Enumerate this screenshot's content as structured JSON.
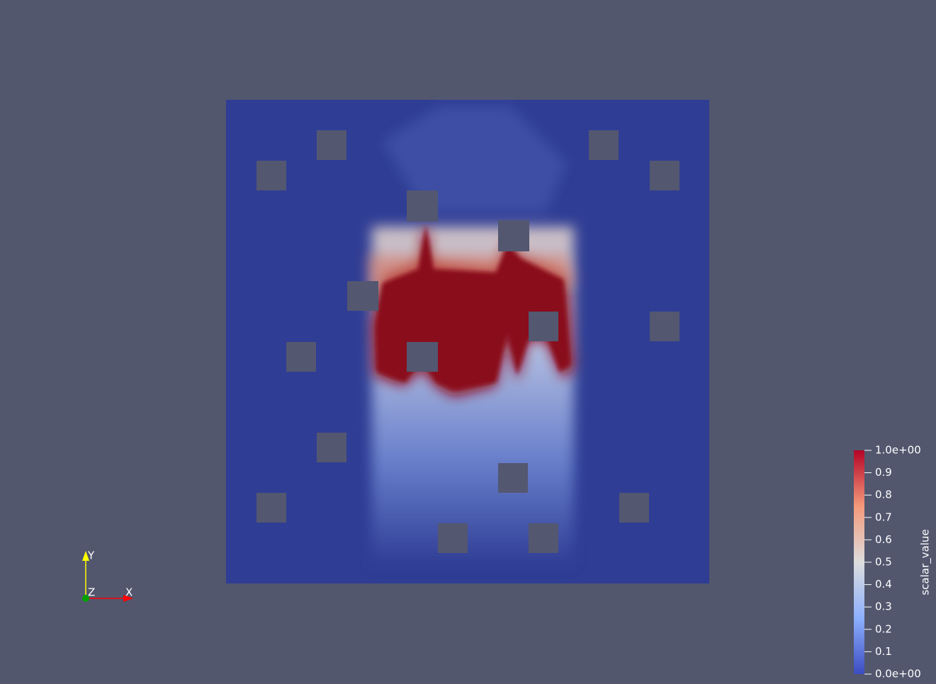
{
  "axes_triad": {
    "x_label": "X",
    "y_label": "Y",
    "z_label": "Z"
  },
  "color_bar": {
    "title": "scalar_value",
    "range": [
      0,
      1
    ],
    "ticks": [
      {
        "value": 1,
        "label": "1.0e+00"
      },
      0.9,
      0.8,
      0.7,
      0.6,
      0.5,
      0.4,
      0.3,
      0.2,
      0.1,
      {
        "value": 0,
        "label": "0.0e+00"
      }
    ]
  }
}
